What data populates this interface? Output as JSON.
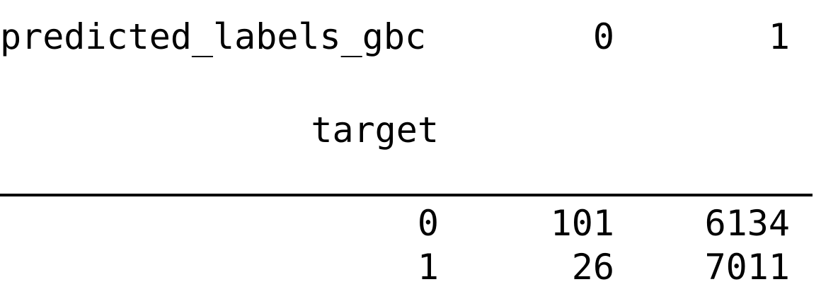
{
  "table": {
    "columns_name": "predicted_labels_gbc",
    "columns": [
      "0",
      "1"
    ],
    "index_name": "target",
    "rows": [
      {
        "label": "0",
        "values": [
          "101",
          "6134"
        ]
      },
      {
        "label": "1",
        "values": [
          "26",
          "7011"
        ]
      }
    ]
  }
}
